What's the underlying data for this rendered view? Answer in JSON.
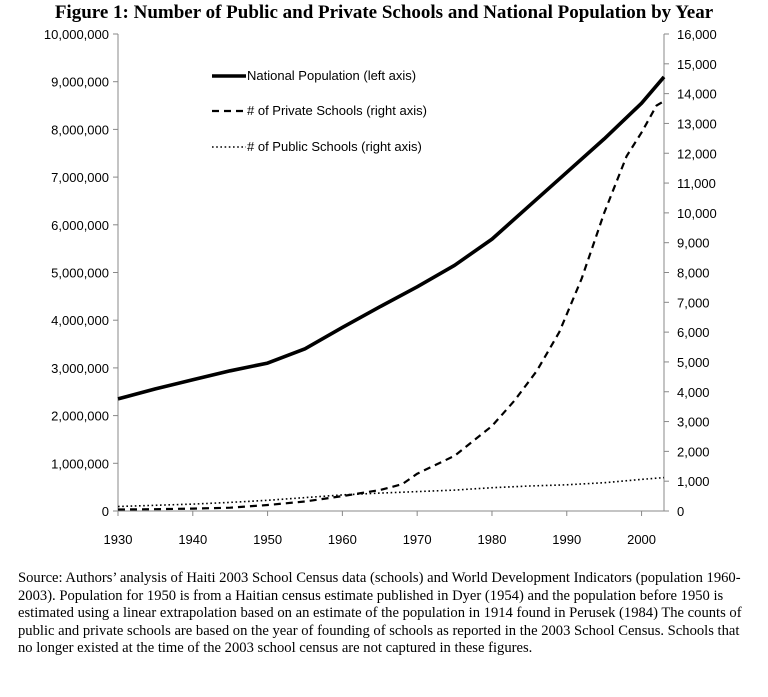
{
  "figure_title": "Figure 1: Number of Public and Private Schools and National Population by Year",
  "caption": "Source: Authors’ analysis of Haiti 2003 School Census data (schools) and World Development Indicators (population 1960-2003). Population for 1950 is from a Haitian census estimate published in Dyer (1954) and the population before 1950 is estimated using a linear extrapolation based on an estimate of the population in 1914 found in Perusek (1984) The counts of public and private schools are based on the year of founding of schools as reported in the 2003 School Census. Schools that no longer existed at the time of the 2003 school census are not captured in these figures.",
  "chart_data": {
    "type": "line",
    "title": "Figure 1: Number of Public and Private Schools and National Population by Year",
    "xlabel": "",
    "ylabel_left": "",
    "ylabel_right": "",
    "xlim": [
      1930,
      2003
    ],
    "ylim_left": [
      0,
      10000000
    ],
    "ylim_right": [
      0,
      16000
    ],
    "x_ticks": [
      1930,
      1940,
      1950,
      1960,
      1970,
      1980,
      1990,
      2000
    ],
    "y_left_ticks": [
      "0",
      "1,000,000",
      "2,000,000",
      "3,000,000",
      "4,000,000",
      "5,000,000",
      "6,000,000",
      "7,000,000",
      "8,000,000",
      "9,000,000",
      "10,000,000"
    ],
    "y_right_ticks": [
      "0",
      "1,000",
      "2,000",
      "3,000",
      "4,000",
      "5,000",
      "6,000",
      "7,000",
      "8,000",
      "9,000",
      "10,000",
      "11,000",
      "12,000",
      "13,000",
      "14,000",
      "15,000",
      "16,000"
    ],
    "legend_position": "top-left",
    "grid": false,
    "series": [
      {
        "name": "National Population (left axis)",
        "axis": "left",
        "style": "solid",
        "x": [
          1930,
          1935,
          1940,
          1945,
          1950,
          1955,
          1960,
          1965,
          1970,
          1975,
          1980,
          1985,
          1990,
          1995,
          2000,
          2003
        ],
        "y": [
          2350000,
          2560000,
          2750000,
          2940000,
          3100000,
          3400000,
          3850000,
          4280000,
          4700000,
          5150000,
          5700000,
          6400000,
          7100000,
          7800000,
          8550000,
          9100000
        ]
      },
      {
        "name": "# of Private Schools (right axis)",
        "axis": "right",
        "style": "dashed",
        "x": [
          1930,
          1935,
          1940,
          1945,
          1950,
          1955,
          1960,
          1965,
          1968,
          1970,
          1975,
          1980,
          1983,
          1986,
          1989,
          1992,
          1995,
          1998,
          2000,
          2002,
          2003
        ],
        "y": [
          50,
          60,
          80,
          110,
          200,
          320,
          500,
          700,
          900,
          1250,
          1850,
          2850,
          3700,
          4700,
          6000,
          7800,
          10000,
          11900,
          12700,
          13600,
          13750
        ]
      },
      {
        "name": "# of Public Schools (right axis)",
        "axis": "right",
        "style": "dotted",
        "x": [
          1930,
          1935,
          1940,
          1945,
          1950,
          1955,
          1960,
          1965,
          1970,
          1975,
          1980,
          1985,
          1990,
          1995,
          2000,
          2003
        ],
        "y": [
          150,
          190,
          230,
          290,
          360,
          450,
          540,
          600,
          650,
          700,
          780,
          840,
          880,
          950,
          1060,
          1120
        ]
      }
    ]
  }
}
